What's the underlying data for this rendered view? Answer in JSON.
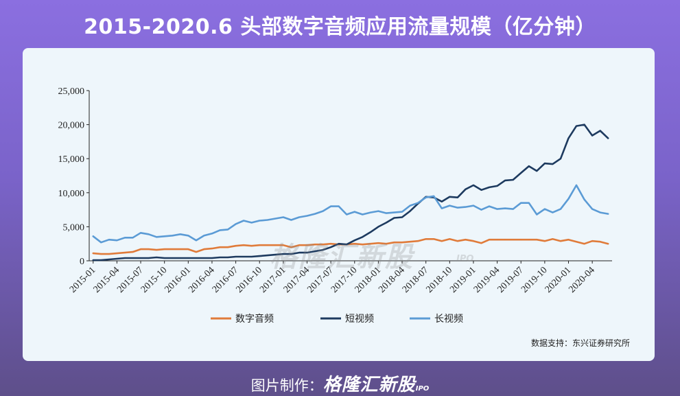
{
  "header": {
    "title": "2015-2020.6 头部数字音频应用流量规模（亿分钟）"
  },
  "source": "数据支持：东兴证券研究所",
  "footer": {
    "prefix": "图片制作：",
    "brand": "格隆汇新股",
    "ipo": "IPO"
  },
  "watermark": {
    "text": "格隆汇新股",
    "sub": "IPO"
  },
  "colors": {
    "数字音频": "#e07b3a",
    "短视频": "#1d3a5f",
    "长视频": "#5b9bd5"
  },
  "chart_data": {
    "type": "line",
    "x": [
      "2015-01",
      "2015-02",
      "2015-03",
      "2015-04",
      "2015-05",
      "2015-06",
      "2015-07",
      "2015-08",
      "2015-09",
      "2015-10",
      "2015-11",
      "2015-12",
      "2016-01",
      "2016-02",
      "2016-03",
      "2016-04",
      "2016-05",
      "2016-06",
      "2016-07",
      "2016-08",
      "2016-09",
      "2016-10",
      "2016-11",
      "2016-12",
      "2017-01",
      "2017-02",
      "2017-03",
      "2017-04",
      "2017-05",
      "2017-06",
      "2017-07",
      "2017-08",
      "2017-09",
      "2017-10",
      "2017-11",
      "2017-12",
      "2018-01",
      "2018-02",
      "2018-03",
      "2018-04",
      "2018-05",
      "2018-06",
      "2018-07",
      "2018-08",
      "2018-09",
      "2018-10",
      "2018-11",
      "2018-12",
      "2019-01",
      "2019-02",
      "2019-03",
      "2019-04",
      "2019-05",
      "2019-06",
      "2019-07",
      "2019-08",
      "2019-09",
      "2019-10",
      "2019-11",
      "2019-12",
      "2020-01",
      "2020-02",
      "2020-03",
      "2020-04",
      "2020-05",
      "2020-06"
    ],
    "tick_labels": [
      "2015-01",
      "2015-04",
      "2015-07",
      "2015-10",
      "2016-01",
      "2016-04",
      "2016-07",
      "2016-10",
      "2017-01",
      "2017-04",
      "2017-07",
      "2017-10",
      "2018-01",
      "2018-04",
      "2018-07",
      "2018-10",
      "2019-01",
      "2019-04",
      "2019-07",
      "2019-10",
      "2020-01",
      "2020-04"
    ],
    "y_tick_labels": [
      "0",
      "5,000",
      "10,000",
      "15,000",
      "20,000",
      "25,000"
    ],
    "ylim": [
      0,
      25000
    ],
    "grid": false,
    "legend_position": "bottom-center",
    "series": [
      {
        "name": "数字音频",
        "values": [
          1100,
          1000,
          1000,
          1100,
          1200,
          1300,
          1700,
          1700,
          1600,
          1700,
          1700,
          1700,
          1700,
          1300,
          1700,
          1800,
          2000,
          2000,
          2200,
          2300,
          2200,
          2300,
          2300,
          2300,
          2300,
          2000,
          2300,
          2300,
          2400,
          2400,
          2500,
          2400,
          2400,
          2500,
          2400,
          2500,
          2600,
          2500,
          2700,
          2700,
          2800,
          2900,
          3200,
          3200,
          2900,
          3200,
          2900,
          3100,
          2900,
          2600,
          3100,
          3100,
          3100,
          3100,
          3100,
          3100,
          3100,
          2900,
          3200,
          2900,
          3100,
          2800,
          2500,
          2900,
          2800,
          2500
        ]
      },
      {
        "name": "短视频",
        "values": [
          100,
          100,
          200,
          300,
          400,
          400,
          400,
          400,
          500,
          400,
          400,
          400,
          400,
          400,
          400,
          400,
          500,
          500,
          600,
          600,
          600,
          700,
          800,
          900,
          1000,
          1000,
          1200,
          1200,
          1400,
          1600,
          2000,
          2500,
          2400,
          3000,
          3500,
          4200,
          5000,
          5600,
          6300,
          6400,
          7300,
          8400,
          9400,
          9300,
          8700,
          9400,
          9300,
          10500,
          11100,
          10400,
          10800,
          11000,
          11800,
          11900,
          12900,
          13900,
          13200,
          14300,
          14200,
          15000,
          18000,
          19800,
          20000,
          18400,
          19100,
          18000
        ]
      },
      {
        "name": "长视频",
        "values": [
          3600,
          2700,
          3100,
          3000,
          3400,
          3400,
          4100,
          3900,
          3500,
          3600,
          3700,
          3900,
          3700,
          3000,
          3700,
          4000,
          4500,
          4600,
          5400,
          5900,
          5600,
          5900,
          6000,
          6200,
          6400,
          6000,
          6400,
          6600,
          6900,
          7300,
          8000,
          8000,
          6800,
          7200,
          6800,
          7100,
          7300,
          7000,
          7100,
          7200,
          8100,
          8500,
          9300,
          9500,
          7700,
          8100,
          7800,
          7900,
          8100,
          7500,
          8000,
          7600,
          7700,
          7600,
          8500,
          8500,
          6800,
          7600,
          7100,
          7600,
          9100,
          11100,
          9000,
          7600,
          7100,
          6900
        ]
      }
    ]
  }
}
